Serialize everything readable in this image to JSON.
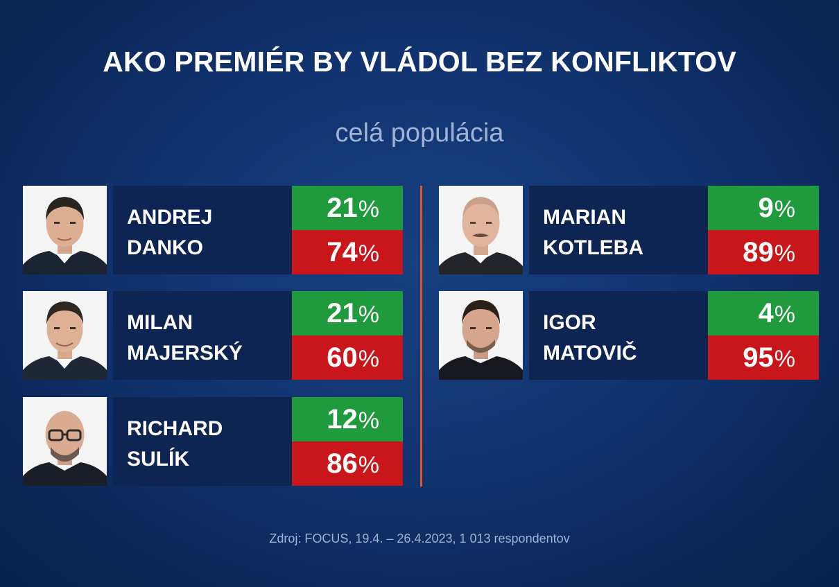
{
  "title": "AKO PREMIÉR BY VLÁDOL BEZ KONFLIKTOV",
  "subtitle": "celá populácia",
  "source": "Zdroj: FOCUS, 19.4. – 26.4.2023, 1 013 respondentov",
  "percent_sign": "%",
  "colors": {
    "positive": "#1f9a3c",
    "negative": "#c8161b",
    "divider": "#e2552a",
    "name_box": "#0e2452"
  },
  "people": [
    {
      "first": "ANDREJ",
      "last": "DANKO",
      "yes": "21",
      "no": "74"
    },
    {
      "first": "MILAN",
      "last": "MAJERSKÝ",
      "yes": "21",
      "no": "60"
    },
    {
      "first": "RICHARD",
      "last": "SULÍK",
      "yes": "12",
      "no": "86"
    },
    {
      "first": "MARIAN",
      "last": "KOTLEBA",
      "yes": "9",
      "no": "89"
    },
    {
      "first": "IGOR",
      "last": "MATOVIČ",
      "yes": "4",
      "no": "95"
    }
  ],
  "chart_data": {
    "type": "table",
    "title": "AKO PREMIÉR BY VLÁDOL BEZ KONFLIKTOV",
    "subtitle": "celá populácia",
    "categories": [
      "ANDREJ DANKO",
      "MILAN MAJERSKÝ",
      "RICHARD SULÍK",
      "MARIAN KOTLEBA",
      "IGOR MATOVIČ"
    ],
    "series": [
      {
        "values": [
          21,
          21,
          12,
          9,
          4
        ],
        "color": "#1f9a3c"
      },
      {
        "values": [
          74,
          60,
          86,
          89,
          95
        ],
        "color": "#c8161b"
      }
    ],
    "unit": "%"
  }
}
